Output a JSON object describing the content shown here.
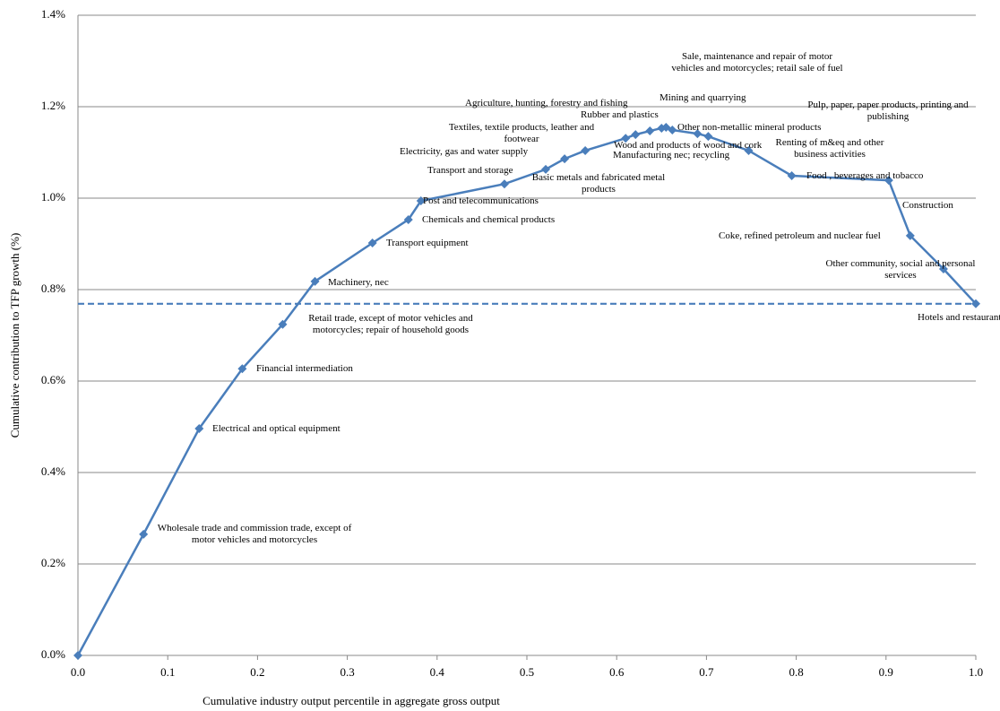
{
  "chart_data": {
    "type": "line",
    "y_axis_label": "Cumulative contribution to TFP growth (%)",
    "x_axis_label": "Cumulative industry output percentile in aggregate gross output",
    "color": "#4a7ebb",
    "grid": true,
    "reference_line": 0.769,
    "x": [
      0,
      0.073,
      0.135,
      0.183,
      0.228,
      0.264,
      0.328,
      0.368,
      0.382,
      0.475,
      0.521,
      0.542,
      0.565,
      0.61,
      0.621,
      0.637,
      0.65,
      0.655,
      0.662,
      0.69,
      0.702,
      0.747,
      0.795,
      0.903,
      0.927,
      0.964,
      1.0
    ],
    "values": [
      0,
      0.265,
      0.496,
      0.627,
      0.724,
      0.818,
      0.902,
      0.953,
      0.994,
      1.031,
      1.063,
      1.086,
      1.104,
      1.131,
      1.139,
      1.147,
      1.153,
      1.155,
      1.149,
      1.141,
      1.135,
      1.104,
      1.049,
      1.039,
      0.918,
      0.845,
      0.769
    ],
    "point_labels": [
      null,
      "Wholesale trade and commission trade, except of motor vehicles and motorcycles",
      "Electrical and optical equipment",
      "Financial intermediation",
      "Retail trade, except of motor vehicles and motorcycles; repair of household goods",
      "Machinery, nec",
      "Transport equipment",
      "Chemicals and chemical products",
      "Post and telecommunications",
      "Transport and storage",
      "Basic metals and fabricated metal products",
      "Electricity, gas and water supply",
      "Textiles, textile products, leather and footwear",
      "Agriculture, hunting, forestry and fishing",
      "Rubber and plastics",
      "Manufacturing nec; recycling",
      "Wood and products of wood and cork",
      "Mining and quarrying",
      "Other non-metallic mineral products",
      "Sale, maintenance and repair of motor vehicles and motorcycles; retail sale of fuel",
      "Pulp, paper, paper products, printing and publishing",
      "Renting of m&eq and other business activities",
      "Food , beverages and tobacco",
      "Construction",
      "Coke, refined petroleum and nuclear fuel",
      "Other community, social and personal services",
      "Hotels and restaurants"
    ],
    "xlim": [
      0,
      1.0
    ],
    "xticks": [
      {
        "value": 0,
        "label": "0.0"
      },
      0.1,
      0.2,
      0.3,
      0.4,
      0.5,
      0.6,
      0.7,
      0.8,
      0.9,
      {
        "value": 1.0,
        "label": "1.0"
      }
    ],
    "ylim": [
      0,
      1.4
    ],
    "yticks": [
      {
        "value": 0,
        "label": "0.0%"
      },
      {
        "value": 0.2,
        "label": "0.2%"
      },
      {
        "value": 0.4,
        "label": "0.4%"
      },
      {
        "value": 0.6,
        "label": "0.6%"
      },
      {
        "value": 0.8,
        "label": "0.8%"
      },
      {
        "value": 1.0,
        "label": "1.0%"
      },
      {
        "value": 1.2,
        "label": "1.2%"
      },
      {
        "value": 1.4,
        "label": "1.4%"
      }
    ]
  }
}
